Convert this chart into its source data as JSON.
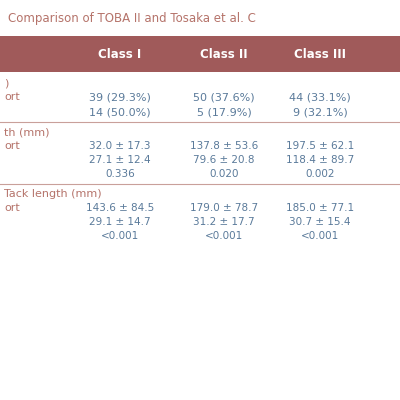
{
  "title": "Comparison of TOBA II and Tosaka et al. C",
  "title_color": "#b5736a",
  "header_bg": "#a05a5a",
  "header_text_color": "#ffffff",
  "header_cols": [
    "",
    "Class I",
    "Class II",
    "Class III"
  ],
  "section1_label": ")",
  "section1_subrow1_label": "ort",
  "section1_subrow1_vals": [
    "39 (29.3%)",
    "50 (37.6%)",
    "44 (33.1%)"
  ],
  "section1_subrow2_vals": [
    "14 (50.0%)",
    "5 (17.9%)",
    "9 (32.1%)"
  ],
  "section2_label": "th (mm)",
  "section2_subrow1_label": "ort",
  "section2_subrow1_vals": [
    "32.0 ± 17.3",
    "137.8 ± 53.6",
    "197.5 ± 62.1"
  ],
  "section2_subrow2_vals": [
    "27.1 ± 12.4",
    "79.6 ± 20.8",
    "118.4 ± 89.7"
  ],
  "section2_subrow3_vals": [
    "0.336",
    "0.020",
    "0.002"
  ],
  "section3_label": "Tack length (mm)",
  "section3_subrow1_label": "ort",
  "section3_subrow1_vals": [
    "143.6 ± 84.5",
    "179.0 ± 78.7",
    "185.0 ± 77.1"
  ],
  "section3_subrow2_vals": [
    "29.1 ± 14.7",
    "31.2 ± 17.7",
    "30.7 ± 15.4"
  ],
  "section3_subrow3_vals": [
    "<0.001",
    "<0.001",
    "<0.001"
  ],
  "divider_color": "#c9a09a",
  "text_color": "#5a7a9a",
  "label_color": "#b5736a",
  "bg_color": "#ffffff",
  "figsize": [
    4.0,
    4.0
  ],
  "dpi": 100
}
